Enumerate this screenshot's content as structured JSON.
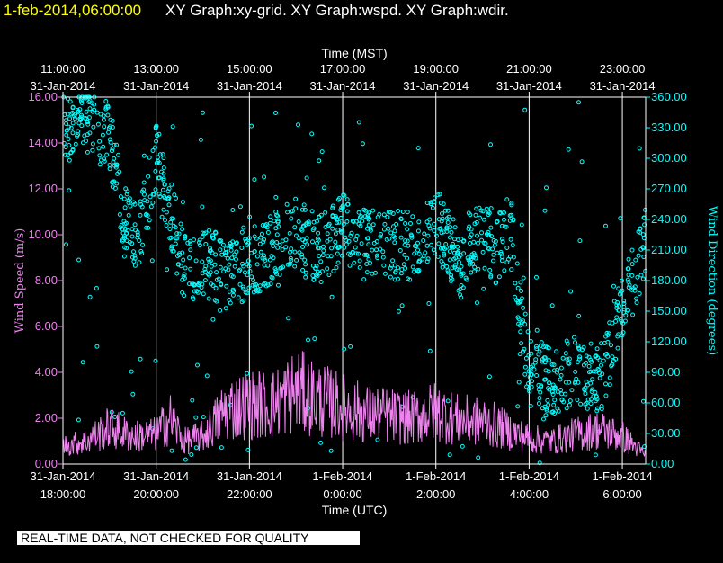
{
  "header": {
    "timestamp": "1-feb-2014,06:00:00",
    "graphs": "XY Graph:xy-grid.  XY Graph:wspd.  XY Graph:wdir."
  },
  "notice": "REAL-TIME DATA, NOT CHECKED FOR QUALITY",
  "colors": {
    "speed": "#ee82ee",
    "direction": "#00ffff",
    "header_time": "#ffff00",
    "background": "#000000",
    "grid": "#ffffff"
  },
  "chart_data": {
    "type": "scatter",
    "top_axis_label": "Time (MST)",
    "bottom_axis_label": "Time (UTC)",
    "left_axis_label": "Wind Speed (m/s)",
    "right_axis_label": "Wind Direction (degrees)",
    "x_range_utc_hours": [
      18,
      30.5
    ],
    "top_ticks": [
      {
        "t": 18,
        "time": "11:00:00",
        "date": "31-Jan-2014"
      },
      {
        "t": 20,
        "time": "13:00:00",
        "date": "31-Jan-2014"
      },
      {
        "t": 22,
        "time": "15:00:00",
        "date": "31-Jan-2014"
      },
      {
        "t": 24,
        "time": "17:00:00",
        "date": "31-Jan-2014"
      },
      {
        "t": 26,
        "time": "19:00:00",
        "date": "31-Jan-2014"
      },
      {
        "t": 28,
        "time": "21:00:00",
        "date": "31-Jan-2014"
      },
      {
        "t": 30,
        "time": "23:00:00",
        "date": "31-Jan-2014"
      }
    ],
    "bottom_ticks": [
      {
        "t": 18,
        "date": "31-Jan-2014",
        "time": "18:00:00"
      },
      {
        "t": 20,
        "date": "31-Jan-2014",
        "time": "20:00:00"
      },
      {
        "t": 22,
        "date": "31-Jan-2014",
        "time": "22:00:00"
      },
      {
        "t": 24,
        "date": "1-Feb-2014",
        "time": "0:00:00"
      },
      {
        "t": 26,
        "date": "1-Feb-2014",
        "time": "2:00:00"
      },
      {
        "t": 28,
        "date": "1-Feb-2014",
        "time": "4:00:00"
      },
      {
        "t": 30,
        "date": "1-Feb-2014",
        "time": "6:00:00"
      }
    ],
    "left_ticks": [
      "0.00",
      "2.00",
      "4.00",
      "6.00",
      "8.00",
      "10.00",
      "12.00",
      "14.00",
      "16.00"
    ],
    "left_range": [
      0,
      16
    ],
    "right_ticks": [
      "0.00",
      "30.00",
      "60.00",
      "90.00",
      "120.00",
      "150.00",
      "180.00",
      "210.00",
      "240.00",
      "270.00",
      "300.00",
      "330.00",
      "360.00"
    ],
    "right_range": [
      0,
      360
    ],
    "grid": true,
    "series": [
      {
        "name": "Wind Speed (m/s)",
        "style": "line",
        "x": [
          18.0,
          18.5,
          19.0,
          19.5,
          20.0,
          20.3,
          20.6,
          21.0,
          21.5,
          22.0,
          22.5,
          23.0,
          23.5,
          24.0,
          24.5,
          25.0,
          25.5,
          26.0,
          26.5,
          27.0,
          27.5,
          28.0,
          28.5,
          29.0,
          29.5,
          30.0,
          30.5
        ],
        "y": [
          0.8,
          1.0,
          1.6,
          1.2,
          1.3,
          2.0,
          1.0,
          1.2,
          2.4,
          2.6,
          2.6,
          3.2,
          2.8,
          2.5,
          2.2,
          2.1,
          2.0,
          2.3,
          1.9,
          1.9,
          1.5,
          1.1,
          1.0,
          1.3,
          1.5,
          1.2,
          0.4
        ]
      },
      {
        "name": "Wind Direction (degrees)",
        "style": "scatter",
        "x": [
          18.0,
          18.5,
          19.0,
          19.3,
          19.6,
          20.0,
          20.3,
          20.6,
          21.0,
          21.5,
          22.0,
          22.5,
          23.0,
          23.5,
          24.0,
          24.5,
          25.0,
          25.5,
          26.0,
          26.5,
          27.0,
          27.3,
          27.6,
          28.0,
          28.5,
          29.0,
          29.5,
          30.0,
          30.5
        ],
        "y": [
          330,
          340,
          320,
          240,
          220,
          300,
          250,
          190,
          200,
          180,
          200,
          210,
          230,
          210,
          230,
          220,
          215,
          215,
          240,
          200,
          230,
          210,
          230,
          90,
          80,
          90,
          80,
          150,
          220
        ]
      }
    ]
  }
}
